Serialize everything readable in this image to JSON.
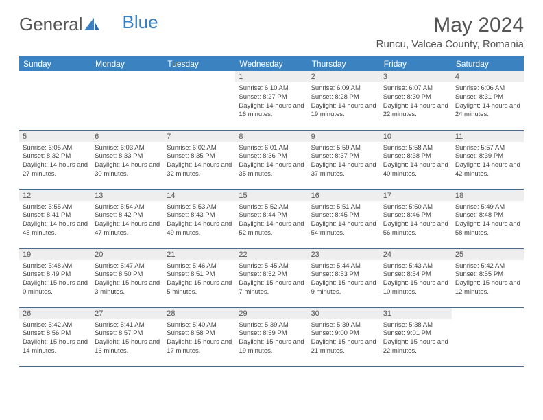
{
  "logo": {
    "text1": "General",
    "text2": "Blue"
  },
  "title": "May 2024",
  "location": "Runcu, Valcea County, Romania",
  "colors": {
    "header_bg": "#3b83c0",
    "header_text": "#ffffff",
    "daynum_bg": "#eeeeee",
    "border": "#4a6a8a",
    "text": "#444444",
    "title_text": "#555555"
  },
  "weekdays": [
    "Sunday",
    "Monday",
    "Tuesday",
    "Wednesday",
    "Thursday",
    "Friday",
    "Saturday"
  ],
  "weeks": [
    [
      null,
      null,
      null,
      {
        "n": "1",
        "sr": "6:10 AM",
        "ss": "8:27 PM",
        "dl": "14 hours and 16 minutes."
      },
      {
        "n": "2",
        "sr": "6:09 AM",
        "ss": "8:28 PM",
        "dl": "14 hours and 19 minutes."
      },
      {
        "n": "3",
        "sr": "6:07 AM",
        "ss": "8:30 PM",
        "dl": "14 hours and 22 minutes."
      },
      {
        "n": "4",
        "sr": "6:06 AM",
        "ss": "8:31 PM",
        "dl": "14 hours and 24 minutes."
      }
    ],
    [
      {
        "n": "5",
        "sr": "6:05 AM",
        "ss": "8:32 PM",
        "dl": "14 hours and 27 minutes."
      },
      {
        "n": "6",
        "sr": "6:03 AM",
        "ss": "8:33 PM",
        "dl": "14 hours and 30 minutes."
      },
      {
        "n": "7",
        "sr": "6:02 AM",
        "ss": "8:35 PM",
        "dl": "14 hours and 32 minutes."
      },
      {
        "n": "8",
        "sr": "6:01 AM",
        "ss": "8:36 PM",
        "dl": "14 hours and 35 minutes."
      },
      {
        "n": "9",
        "sr": "5:59 AM",
        "ss": "8:37 PM",
        "dl": "14 hours and 37 minutes."
      },
      {
        "n": "10",
        "sr": "5:58 AM",
        "ss": "8:38 PM",
        "dl": "14 hours and 40 minutes."
      },
      {
        "n": "11",
        "sr": "5:57 AM",
        "ss": "8:39 PM",
        "dl": "14 hours and 42 minutes."
      }
    ],
    [
      {
        "n": "12",
        "sr": "5:55 AM",
        "ss": "8:41 PM",
        "dl": "14 hours and 45 minutes."
      },
      {
        "n": "13",
        "sr": "5:54 AM",
        "ss": "8:42 PM",
        "dl": "14 hours and 47 minutes."
      },
      {
        "n": "14",
        "sr": "5:53 AM",
        "ss": "8:43 PM",
        "dl": "14 hours and 49 minutes."
      },
      {
        "n": "15",
        "sr": "5:52 AM",
        "ss": "8:44 PM",
        "dl": "14 hours and 52 minutes."
      },
      {
        "n": "16",
        "sr": "5:51 AM",
        "ss": "8:45 PM",
        "dl": "14 hours and 54 minutes."
      },
      {
        "n": "17",
        "sr": "5:50 AM",
        "ss": "8:46 PM",
        "dl": "14 hours and 56 minutes."
      },
      {
        "n": "18",
        "sr": "5:49 AM",
        "ss": "8:48 PM",
        "dl": "14 hours and 58 minutes."
      }
    ],
    [
      {
        "n": "19",
        "sr": "5:48 AM",
        "ss": "8:49 PM",
        "dl": "15 hours and 0 minutes."
      },
      {
        "n": "20",
        "sr": "5:47 AM",
        "ss": "8:50 PM",
        "dl": "15 hours and 3 minutes."
      },
      {
        "n": "21",
        "sr": "5:46 AM",
        "ss": "8:51 PM",
        "dl": "15 hours and 5 minutes."
      },
      {
        "n": "22",
        "sr": "5:45 AM",
        "ss": "8:52 PM",
        "dl": "15 hours and 7 minutes."
      },
      {
        "n": "23",
        "sr": "5:44 AM",
        "ss": "8:53 PM",
        "dl": "15 hours and 9 minutes."
      },
      {
        "n": "24",
        "sr": "5:43 AM",
        "ss": "8:54 PM",
        "dl": "15 hours and 10 minutes."
      },
      {
        "n": "25",
        "sr": "5:42 AM",
        "ss": "8:55 PM",
        "dl": "15 hours and 12 minutes."
      }
    ],
    [
      {
        "n": "26",
        "sr": "5:42 AM",
        "ss": "8:56 PM",
        "dl": "15 hours and 14 minutes."
      },
      {
        "n": "27",
        "sr": "5:41 AM",
        "ss": "8:57 PM",
        "dl": "15 hours and 16 minutes."
      },
      {
        "n": "28",
        "sr": "5:40 AM",
        "ss": "8:58 PM",
        "dl": "15 hours and 17 minutes."
      },
      {
        "n": "29",
        "sr": "5:39 AM",
        "ss": "8:59 PM",
        "dl": "15 hours and 19 minutes."
      },
      {
        "n": "30",
        "sr": "5:39 AM",
        "ss": "9:00 PM",
        "dl": "15 hours and 21 minutes."
      },
      {
        "n": "31",
        "sr": "5:38 AM",
        "ss": "9:01 PM",
        "dl": "15 hours and 22 minutes."
      },
      null
    ]
  ],
  "labels": {
    "sunrise": "Sunrise:",
    "sunset": "Sunset:",
    "daylight": "Daylight:"
  }
}
